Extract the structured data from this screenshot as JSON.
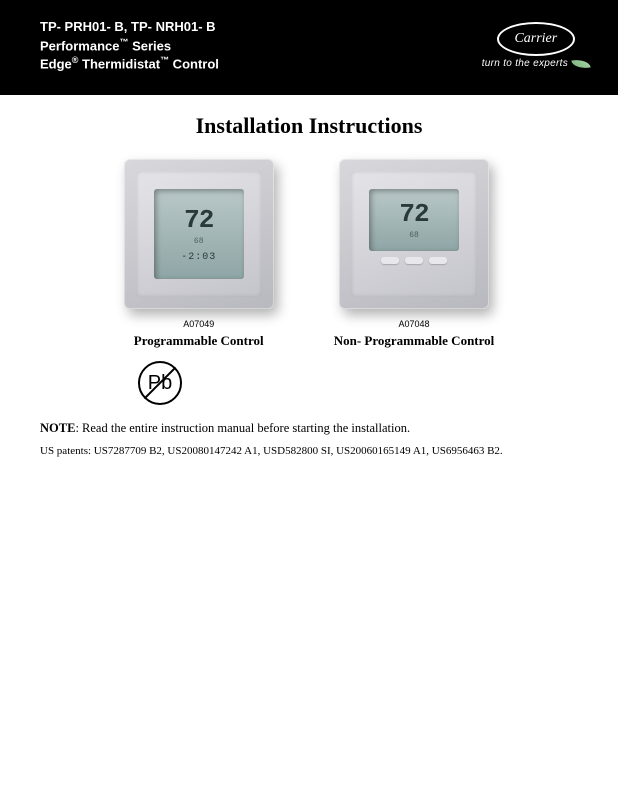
{
  "header": {
    "line1": "TP- PRH01- B, TP- NRH01- B",
    "line2_prefix": "Performance",
    "line2_suffix": " Series",
    "line3_a": "Edge",
    "line3_b": " Thermidistat",
    "line3_c": " Control",
    "brand": "Carrier",
    "tagline": "turn to the experts"
  },
  "title": "Installation Instructions",
  "products": [
    {
      "code": "A07049",
      "label": "Programmable Control",
      "temp": "72",
      "sub": "68",
      "time": "-2:03",
      "variant": "full"
    },
    {
      "code": "A07048",
      "label": "Non- Programmable Control",
      "temp": "72",
      "sub": "68",
      "time": "",
      "variant": "small"
    }
  ],
  "pb_symbol": "Pb",
  "note": {
    "label": "NOTE",
    "text": ":  Read the entire instruction manual before starting the installation."
  },
  "patents": "US patents: US7287709 B2, US20080147242 A1, USD582800 SI, US20060165149 A1, US6956463 B2."
}
